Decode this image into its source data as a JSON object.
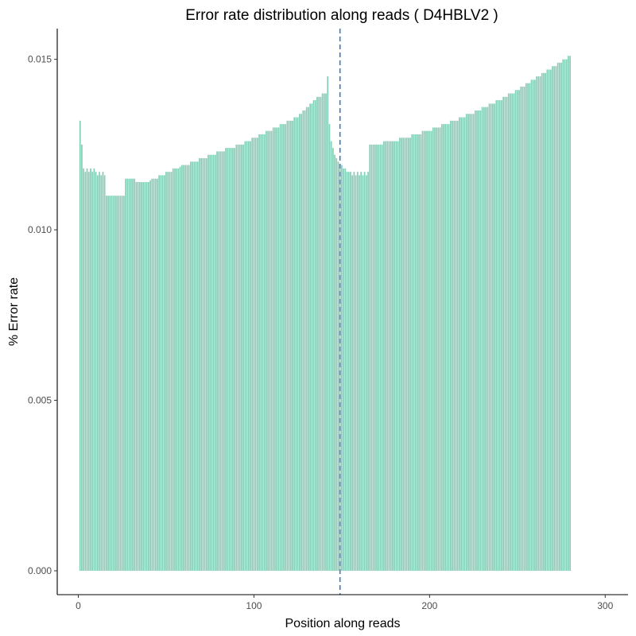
{
  "chart_data": {
    "type": "bar",
    "title": "Error rate distribution along reads ( D4HBLV2 )",
    "xlabel": "Position along reads",
    "ylabel": "% Error rate",
    "xlim": [
      -12,
      313
    ],
    "ylim": [
      -0.0007,
      0.0159
    ],
    "xticks": [
      0,
      100,
      200,
      300
    ],
    "xtick_labels": [
      "0",
      "100",
      "200",
      "300"
    ],
    "yticks": [
      0.0,
      0.005,
      0.01,
      0.015
    ],
    "ytick_labels": [
      "0.000",
      "0.005",
      "0.010",
      "0.015"
    ],
    "vline_x": 149,
    "bar_color": "#66c2a5",
    "vline_color": "#3a78c2",
    "grid": false,
    "legend": "none",
    "series": [
      {
        "x_start": 1,
        "values": [
          0.0132,
          0.0125,
          0.0118,
          0.0117,
          0.0118,
          0.0117,
          0.0118,
          0.0117,
          0.0118,
          0.0117,
          0.0116,
          0.0117,
          0.0116,
          0.0117,
          0.0116,
          0.011,
          0.011,
          0.011,
          0.011,
          0.011,
          0.011,
          0.011,
          0.011,
          0.011,
          0.011,
          0.011,
          0.0115,
          0.0115,
          0.0115,
          0.0115,
          0.0115,
          0.0115,
          0.0114,
          0.0114,
          0.0114,
          0.0114,
          0.0114,
          0.0114,
          0.0114,
          0.0114,
          0.01145,
          0.0115,
          0.0115,
          0.0115,
          0.0115,
          0.0116,
          0.0116,
          0.0116,
          0.0116,
          0.0117,
          0.0117,
          0.0117,
          0.0117,
          0.0118,
          0.0118,
          0.0118,
          0.0118,
          0.01185,
          0.0119,
          0.0119,
          0.0119,
          0.0119,
          0.0119,
          0.012,
          0.012,
          0.012,
          0.012,
          0.012,
          0.0121,
          0.0121,
          0.0121,
          0.0121,
          0.0121,
          0.0122,
          0.0122,
          0.0122,
          0.0122,
          0.0122,
          0.0123,
          0.0123,
          0.0123,
          0.0123,
          0.0123,
          0.0124,
          0.0124,
          0.0124,
          0.0124,
          0.0124,
          0.0124,
          0.0125,
          0.0125,
          0.0125,
          0.0125,
          0.0125,
          0.0126,
          0.0126,
          0.0126,
          0.0126,
          0.0127,
          0.0127,
          0.0127,
          0.0127,
          0.0128,
          0.0128,
          0.0128,
          0.0128,
          0.0129,
          0.0129,
          0.0129,
          0.0129,
          0.013,
          0.013,
          0.013,
          0.013,
          0.0131,
          0.0131,
          0.0131,
          0.0131,
          0.0132,
          0.0132,
          0.0132,
          0.0132,
          0.0133,
          0.0133,
          0.0133,
          0.0134,
          0.0134,
          0.0135,
          0.0135,
          0.0136,
          0.0136,
          0.0137,
          0.0137,
          0.0138,
          0.0138,
          0.0139,
          0.0139,
          0.0139,
          0.014,
          0.014,
          0.014,
          0.0145,
          0.0131,
          0.0126,
          0.0124,
          0.0122,
          0.0121,
          0.012,
          0.0119,
          0.0119,
          0.0118,
          0.0118,
          0.0117,
          0.0117,
          0.0117,
          0.0116,
          0.0117,
          0.0116,
          0.0117,
          0.0116,
          0.0117,
          0.0116,
          0.0117,
          0.0116,
          0.0117,
          0.0125,
          0.0125,
          0.0125,
          0.0125,
          0.0125,
          0.0125,
          0.0125,
          0.0125,
          0.0126,
          0.0126,
          0.0126,
          0.0126,
          0.0126,
          0.0126,
          0.0126,
          0.0126,
          0.0126,
          0.0127,
          0.0127,
          0.0127,
          0.0127,
          0.0127,
          0.0127,
          0.0127,
          0.0128,
          0.0128,
          0.0128,
          0.0128,
          0.0128,
          0.0128,
          0.0129,
          0.0129,
          0.0129,
          0.0129,
          0.0129,
          0.0129,
          0.013,
          0.013,
          0.013,
          0.013,
          0.013,
          0.0131,
          0.0131,
          0.0131,
          0.0131,
          0.0131,
          0.0132,
          0.0132,
          0.0132,
          0.0132,
          0.0132,
          0.0133,
          0.0133,
          0.0133,
          0.0133,
          0.0134,
          0.0134,
          0.0134,
          0.0134,
          0.0134,
          0.0135,
          0.0135,
          0.0135,
          0.0135,
          0.0136,
          0.0136,
          0.0136,
          0.0136,
          0.0137,
          0.0137,
          0.0137,
          0.0137,
          0.0138,
          0.0138,
          0.0138,
          0.0138,
          0.0139,
          0.0139,
          0.0139,
          0.014,
          0.014,
          0.014,
          0.014,
          0.0141,
          0.0141,
          0.0141,
          0.0142,
          0.0142,
          0.0142,
          0.0143,
          0.0143,
          0.0143,
          0.0144,
          0.0144,
          0.0144,
          0.0145,
          0.0145,
          0.0145,
          0.0146,
          0.0146,
          0.0146,
          0.0147,
          0.0147,
          0.0147,
          0.0148,
          0.0148,
          0.0148,
          0.0149,
          0.0149,
          0.0149,
          0.015,
          0.015,
          0.015,
          0.0151,
          0.0151
        ]
      }
    ]
  }
}
